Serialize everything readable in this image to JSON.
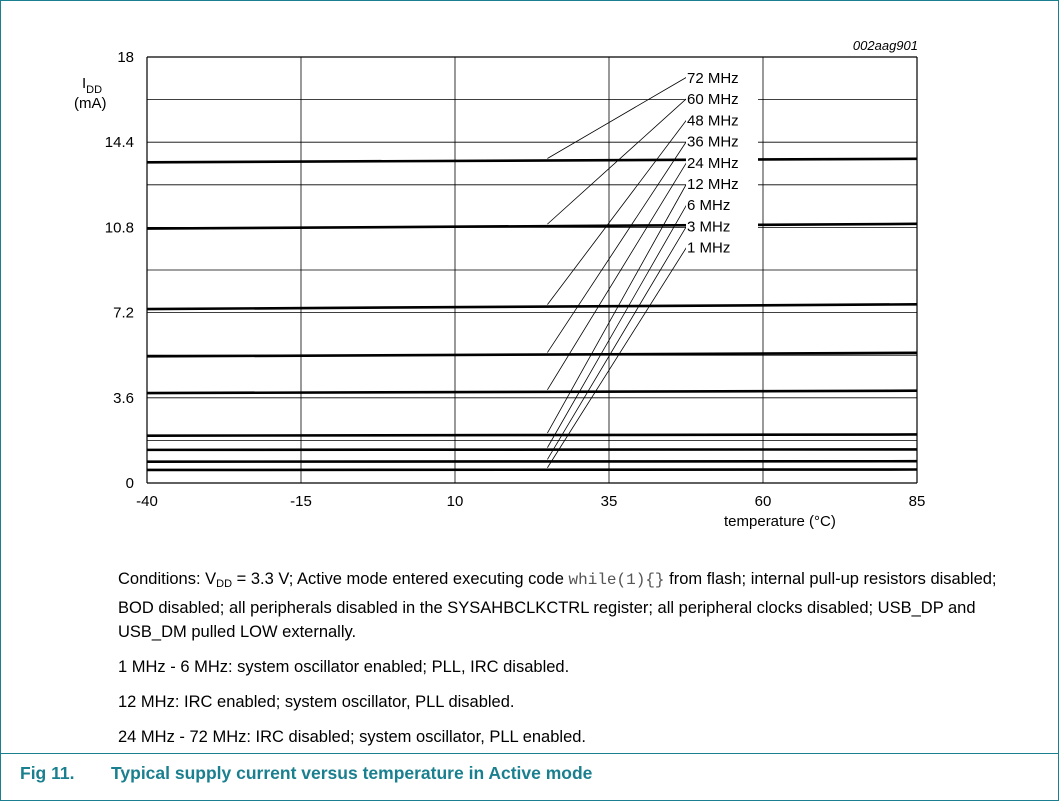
{
  "chart_data": {
    "type": "line",
    "id_code": "002aag901",
    "ylabel_main": "I",
    "ylabel_sub": "DD",
    "ylabel_unit": "(mA)",
    "xlabel": "temperature (°C)",
    "xlim": [
      -40,
      85
    ],
    "ylim": [
      0,
      18
    ],
    "xticks": [
      "-40",
      "-15",
      "10",
      "35",
      "60",
      "85"
    ],
    "yticks": [
      "0",
      "3.6",
      "7.2",
      "10.8",
      "14.4",
      "18"
    ],
    "grid": true,
    "leader_x": 25,
    "x": [
      -40,
      85
    ],
    "series": [
      {
        "name": "72 MHz",
        "values": [
          13.55,
          13.7
        ]
      },
      {
        "name": "60 MHz",
        "values": [
          10.75,
          10.95
        ]
      },
      {
        "name": "48 MHz",
        "values": [
          7.35,
          7.55
        ]
      },
      {
        "name": "36 MHz",
        "values": [
          5.35,
          5.5
        ]
      },
      {
        "name": "24 MHz",
        "values": [
          3.8,
          3.9
        ]
      },
      {
        "name": "12 MHz",
        "values": [
          2.0,
          2.05
        ]
      },
      {
        "name": "6 MHz",
        "values": [
          1.4,
          1.42
        ]
      },
      {
        "name": "3 MHz",
        "values": [
          0.9,
          0.92
        ]
      },
      {
        "name": "1 MHz",
        "values": [
          0.55,
          0.57
        ]
      }
    ]
  },
  "notes": {
    "conditions_prefix": "Conditions: V",
    "conditions_sub": "DD",
    "conditions_mid": " = 3.3 V; Active mode entered executing code ",
    "conditions_code": "while(1){}",
    "conditions_rest": " from flash; internal pull-up resistors disabled; BOD disabled; all peripherals disabled in the SYSAHBCLKCTRL register; all peripheral clocks disabled; USB_DP and USB_DM pulled LOW externally.",
    "line2": "1 MHz - 6 MHz: system oscillator enabled; PLL, IRC disabled.",
    "line3": "12 MHz: IRC enabled; system oscillator, PLL disabled.",
    "line4": "24 MHz - 72 MHz: IRC disabled; system oscillator, PLL enabled."
  },
  "caption": {
    "fig": "Fig 11.",
    "title": "Typical supply current versus temperature in Active mode"
  },
  "colors": {
    "accent": "#1a7f8e",
    "grid": "#000000",
    "lines": "#000000"
  }
}
